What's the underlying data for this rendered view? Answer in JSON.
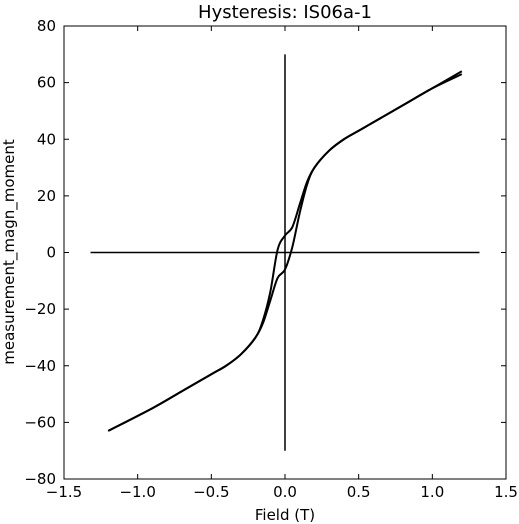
{
  "chart_data": {
    "type": "line",
    "title": "Hysteresis: IS06a-1",
    "xlabel": "Field (T)",
    "ylabel": "measurement_magn_moment",
    "xlim": [
      -1.5,
      1.5
    ],
    "ylim": [
      -80,
      80
    ],
    "xticks": [
      -1.5,
      -1.0,
      -0.5,
      0.0,
      0.5,
      1.0,
      1.5
    ],
    "xtick_labels": [
      "−1.5",
      "−1.0",
      "−0.5",
      "0.0",
      "0.5",
      "1.0",
      "1.5"
    ],
    "yticks": [
      -80,
      -60,
      -40,
      -20,
      0,
      20,
      40,
      60,
      80
    ],
    "ytick_labels": [
      "−80",
      "−60",
      "−40",
      "−20",
      "0",
      "20",
      "40",
      "60",
      "80"
    ],
    "grid": false,
    "line_color": "#000000",
    "reference_lines": {
      "horizontal": {
        "y": 0,
        "x": [
          -1.32,
          1.32
        ]
      },
      "vertical": {
        "x": 0,
        "y": [
          -70,
          70
        ]
      }
    },
    "series": [
      {
        "x": [
          1.2,
          1.0,
          0.8,
          0.6,
          0.5,
          0.4,
          0.3,
          0.2,
          0.15,
          0.1,
          0.05,
          0.0,
          -0.05,
          -0.1,
          -0.15,
          -0.2,
          -0.3,
          -0.4,
          -0.5,
          -0.7,
          -0.9,
          -1.2
        ],
        "y": [
          64,
          58,
          52,
          46,
          43,
          40,
          36,
          30,
          25,
          17,
          9,
          6,
          1,
          -14,
          -24,
          -30,
          -36,
          -40,
          -43,
          -49,
          -55,
          -63
        ]
      },
      {
        "x": [
          -1.2,
          -0.9,
          -0.7,
          -0.5,
          -0.4,
          -0.3,
          -0.2,
          -0.15,
          -0.1,
          -0.05,
          0.0,
          0.05,
          0.1,
          0.15,
          0.2,
          0.3,
          0.4,
          0.5,
          0.6,
          0.8,
          1.0,
          1.2
        ],
        "y": [
          -63,
          -55,
          -49,
          -43,
          -40,
          -36,
          -30,
          -25,
          -17,
          -9,
          -6,
          2,
          14,
          24,
          30,
          36,
          40,
          43,
          46,
          52,
          58,
          63
        ]
      }
    ]
  }
}
